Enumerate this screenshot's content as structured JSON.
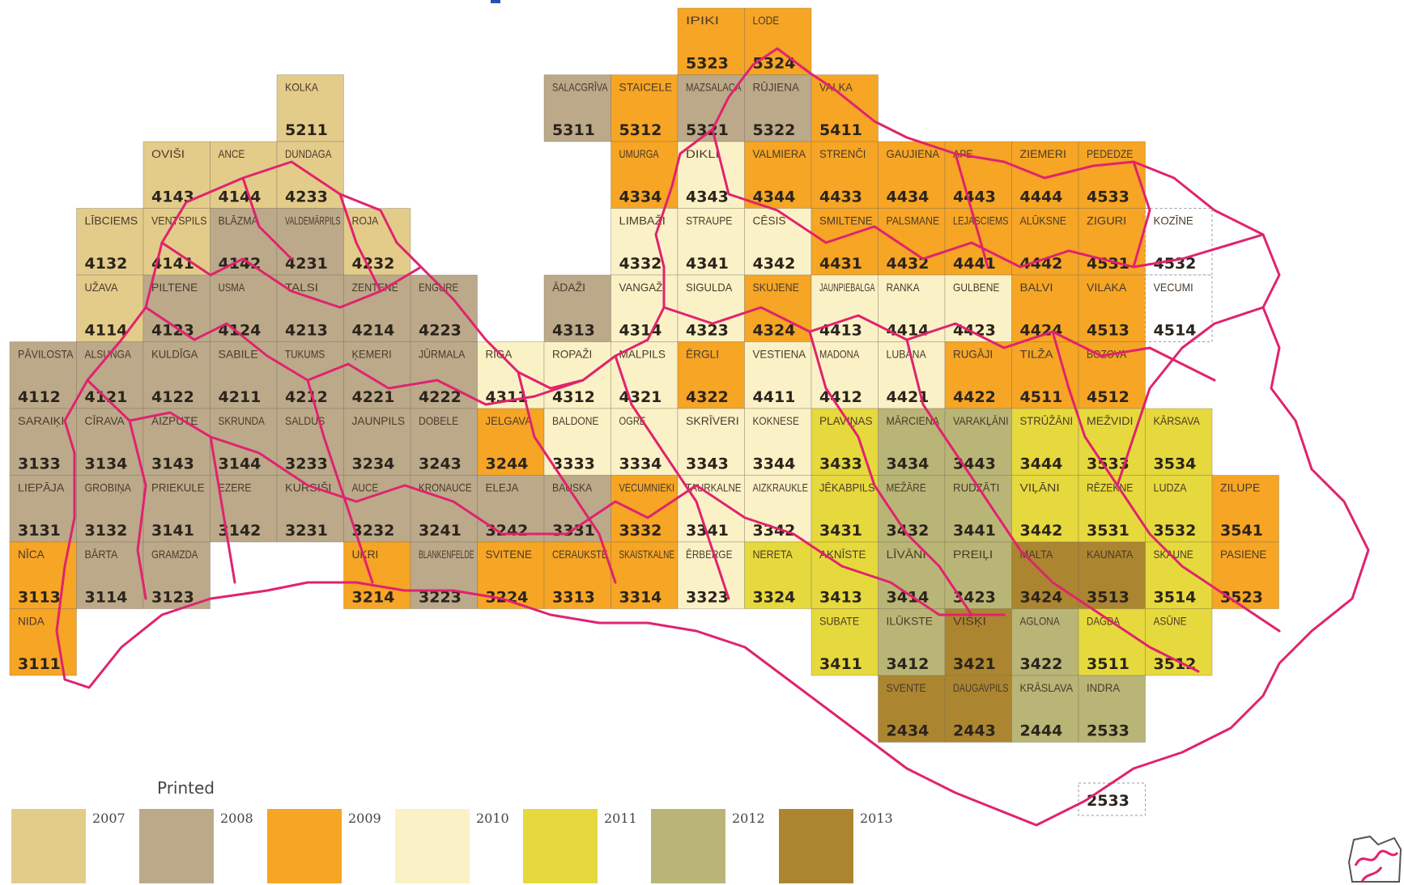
{
  "legend": {
    "title": "Printed",
    "items": [
      {
        "year": "2007",
        "color": "#e3cb8a"
      },
      {
        "year": "2008",
        "color": "#bba98a"
      },
      {
        "year": "2009",
        "color": "#f6a525"
      },
      {
        "year": "2010",
        "color": "#fbf1c6"
      },
      {
        "year": "2011",
        "color": "#e6d93d"
      },
      {
        "year": "2012",
        "color": "#b9b576"
      },
      {
        "year": "2013",
        "color": "#ab8530"
      }
    ]
  },
  "sheets": [
    {
      "c": 10,
      "r": 0,
      "name": "IPIKI",
      "num": "5323",
      "year": "2009"
    },
    {
      "c": 11,
      "r": 0,
      "name": "LODE",
      "num": "5324",
      "year": "2009"
    },
    {
      "c": 4,
      "r": 1,
      "name": "KOLKA",
      "num": "5211",
      "year": "2007"
    },
    {
      "c": 8,
      "r": 1,
      "name": "SALACGRĪVA",
      "num": "5311",
      "year": "2008"
    },
    {
      "c": 9,
      "r": 1,
      "name": "STAICELE",
      "num": "5312",
      "year": "2009"
    },
    {
      "c": 10,
      "r": 1,
      "name": "MAZSALACA",
      "num": "5321",
      "year": "2008"
    },
    {
      "c": 11,
      "r": 1,
      "name": "RŪJIENA",
      "num": "5322",
      "year": "2008"
    },
    {
      "c": 12,
      "r": 1,
      "name": "VALKA",
      "num": "5411",
      "year": "2009"
    },
    {
      "c": 2,
      "r": 2,
      "name": "OVIŠI",
      "num": "4143",
      "year": "2007"
    },
    {
      "c": 3,
      "r": 2,
      "name": "ANCE",
      "num": "4144",
      "year": "2007"
    },
    {
      "c": 4,
      "r": 2,
      "name": "DUNDAGA",
      "num": "4233",
      "year": "2007"
    },
    {
      "c": 9,
      "r": 2,
      "name": "UMURGA",
      "num": "4334",
      "year": "2009"
    },
    {
      "c": 10,
      "r": 2,
      "name": "DIKLI",
      "num": "4343",
      "year": "2010"
    },
    {
      "c": 11,
      "r": 2,
      "name": "VALMIERA",
      "num": "4344",
      "year": "2009"
    },
    {
      "c": 12,
      "r": 2,
      "name": "STRENČI",
      "num": "4433",
      "year": "2009"
    },
    {
      "c": 13,
      "r": 2,
      "name": "GAUJIENA",
      "num": "4434",
      "year": "2009"
    },
    {
      "c": 14,
      "r": 2,
      "name": "APE",
      "num": "4443",
      "year": "2009"
    },
    {
      "c": 15,
      "r": 2,
      "name": "ZIEMERI",
      "num": "4444",
      "year": "2009"
    },
    {
      "c": 16,
      "r": 2,
      "name": "PEDEDZE",
      "num": "4533",
      "year": "2009"
    },
    {
      "c": 1,
      "r": 3,
      "name": "LĪBCIEMS",
      "num": "4132",
      "year": "2007"
    },
    {
      "c": 2,
      "r": 3,
      "name": "VENTSPILS",
      "num": "4141",
      "year": "2007"
    },
    {
      "c": 3,
      "r": 3,
      "name": "BLĀZMA",
      "num": "4142",
      "year": "2008"
    },
    {
      "c": 4,
      "r": 3,
      "name": "VALDEMĀRPILS",
      "num": "4231",
      "year": "2008"
    },
    {
      "c": 5,
      "r": 3,
      "name": "ROJA",
      "num": "4232",
      "year": "2007"
    },
    {
      "c": 9,
      "r": 3,
      "name": "LIMBAŽI",
      "num": "4332",
      "year": "2010"
    },
    {
      "c": 10,
      "r": 3,
      "name": "STRAUPE",
      "num": "4341",
      "year": "2010"
    },
    {
      "c": 11,
      "r": 3,
      "name": "CĒSIS",
      "num": "4342",
      "year": "2010"
    },
    {
      "c": 12,
      "r": 3,
      "name": "SMILTENE",
      "num": "4431",
      "year": "2009"
    },
    {
      "c": 13,
      "r": 3,
      "name": "PALSMANE",
      "num": "4432",
      "year": "2009"
    },
    {
      "c": 14,
      "r": 3,
      "name": "LEJASCIEMS",
      "num": "4441",
      "year": "2009"
    },
    {
      "c": 15,
      "r": 3,
      "name": "ALŪKSNE",
      "num": "4442",
      "year": "2009"
    },
    {
      "c": 16,
      "r": 3,
      "name": "ZIGURI",
      "num": "4531",
      "year": "2009"
    },
    {
      "c": 17,
      "r": 3,
      "name": "KOZĪNE",
      "num": "4532",
      "year": "none"
    },
    {
      "c": 1,
      "r": 4,
      "name": "UŽAVA",
      "num": "4114",
      "year": "2007"
    },
    {
      "c": 2,
      "r": 4,
      "name": "PILTENE",
      "num": "4123",
      "year": "2008"
    },
    {
      "c": 3,
      "r": 4,
      "name": "USMA",
      "num": "4124",
      "year": "2008"
    },
    {
      "c": 4,
      "r": 4,
      "name": "TALSI",
      "num": "4213",
      "year": "2008"
    },
    {
      "c": 5,
      "r": 4,
      "name": "ZENTENE",
      "num": "4214",
      "year": "2008"
    },
    {
      "c": 6,
      "r": 4,
      "name": "ENGURE",
      "num": "4223",
      "year": "2008"
    },
    {
      "c": 8,
      "r": 4,
      "name": "ĀDAŽI",
      "num": "4313",
      "year": "2008"
    },
    {
      "c": 9,
      "r": 4,
      "name": "VANGAŽI",
      "num": "4314",
      "year": "2010"
    },
    {
      "c": 10,
      "r": 4,
      "name": "SIGULDA",
      "num": "4323",
      "year": "2010"
    },
    {
      "c": 11,
      "r": 4,
      "name": "SKUJENE",
      "num": "4324",
      "year": "2009"
    },
    {
      "c": 12,
      "r": 4,
      "name": "JAUNPIEBALGA",
      "num": "4413",
      "year": "2010"
    },
    {
      "c": 13,
      "r": 4,
      "name": "RANKA",
      "num": "4414",
      "year": "2010"
    },
    {
      "c": 14,
      "r": 4,
      "name": "GULBENE",
      "num": "4423",
      "year": "2010"
    },
    {
      "c": 15,
      "r": 4,
      "name": "BALVI",
      "num": "4424",
      "year": "2009"
    },
    {
      "c": 16,
      "r": 4,
      "name": "VILAKA",
      "num": "4513",
      "year": "2009"
    },
    {
      "c": 17,
      "r": 4,
      "name": "VECUMI",
      "num": "4514",
      "year": "none"
    },
    {
      "c": 0,
      "r": 5,
      "name": "PĀVILOSTA",
      "num": "4112",
      "year": "2008"
    },
    {
      "c": 1,
      "r": 5,
      "name": "ALSUNGA",
      "num": "4121",
      "year": "2008"
    },
    {
      "c": 2,
      "r": 5,
      "name": "KULDĪGA",
      "num": "4122",
      "year": "2008"
    },
    {
      "c": 3,
      "r": 5,
      "name": "SABILE",
      "num": "4211",
      "year": "2008"
    },
    {
      "c": 4,
      "r": 5,
      "name": "TUKUMS",
      "num": "4212",
      "year": "2008"
    },
    {
      "c": 5,
      "r": 5,
      "name": "ĶEMERI",
      "num": "4221",
      "year": "2008"
    },
    {
      "c": 6,
      "r": 5,
      "name": "JŪRMALA",
      "num": "4222",
      "year": "2008"
    },
    {
      "c": 7,
      "r": 5,
      "name": "RĪGA",
      "num": "4311",
      "year": "2010"
    },
    {
      "c": 8,
      "r": 5,
      "name": "ROPAŽI",
      "num": "4312",
      "year": "2010"
    },
    {
      "c": 9,
      "r": 5,
      "name": "MALPILS",
      "num": "4321",
      "year": "2010"
    },
    {
      "c": 10,
      "r": 5,
      "name": "ĒRGLI",
      "num": "4322",
      "year": "2009"
    },
    {
      "c": 11,
      "r": 5,
      "name": "VESTIENA",
      "num": "4411",
      "year": "2010"
    },
    {
      "c": 12,
      "r": 5,
      "name": "MADONA",
      "num": "4412",
      "year": "2010"
    },
    {
      "c": 13,
      "r": 5,
      "name": "LUBĀNA",
      "num": "4421",
      "year": "2010"
    },
    {
      "c": 14,
      "r": 5,
      "name": "RUGĀJI",
      "num": "4422",
      "year": "2009"
    },
    {
      "c": 15,
      "r": 5,
      "name": "TILŽA",
      "num": "4511",
      "year": "2009"
    },
    {
      "c": 16,
      "r": 5,
      "name": "BOZOVA",
      "num": "4512",
      "year": "2009"
    },
    {
      "c": 0,
      "r": 6,
      "name": "SARAIĶI",
      "num": "3133",
      "year": "2008"
    },
    {
      "c": 1,
      "r": 6,
      "name": "CĪRAVA",
      "num": "3134",
      "year": "2008"
    },
    {
      "c": 2,
      "r": 6,
      "name": "AIZPUTE",
      "num": "3143",
      "year": "2008"
    },
    {
      "c": 3,
      "r": 6,
      "name": "SKRUNDA",
      "num": "3144",
      "year": "2008"
    },
    {
      "c": 4,
      "r": 6,
      "name": "SALDUS",
      "num": "3233",
      "year": "2008"
    },
    {
      "c": 5,
      "r": 6,
      "name": "JAUNPILS",
      "num": "3234",
      "year": "2008"
    },
    {
      "c": 6,
      "r": 6,
      "name": "DOBELE",
      "num": "3243",
      "year": "2008"
    },
    {
      "c": 7,
      "r": 6,
      "name": "JELGAVA",
      "num": "3244",
      "year": "2009"
    },
    {
      "c": 8,
      "r": 6,
      "name": "BALDONE",
      "num": "3333",
      "year": "2010"
    },
    {
      "c": 9,
      "r": 6,
      "name": "OGRE",
      "num": "3334",
      "year": "2010"
    },
    {
      "c": 10,
      "r": 6,
      "name": "SKRĪVERI",
      "num": "3343",
      "year": "2010"
    },
    {
      "c": 11,
      "r": 6,
      "name": "KOKNESE",
      "num": "3344",
      "year": "2010"
    },
    {
      "c": 12,
      "r": 6,
      "name": "PLAVIŅAS",
      "num": "3433",
      "year": "2011"
    },
    {
      "c": 13,
      "r": 6,
      "name": "MĀRCIENA",
      "num": "3434",
      "year": "2012"
    },
    {
      "c": 14,
      "r": 6,
      "name": "VARAKĻĀNI",
      "num": "3443",
      "year": "2012"
    },
    {
      "c": 15,
      "r": 6,
      "name": "STRŪŽĀNI",
      "num": "3444",
      "year": "2011"
    },
    {
      "c": 16,
      "r": 6,
      "name": "MEŽVIDI",
      "num": "3533",
      "year": "2011"
    },
    {
      "c": 17,
      "r": 6,
      "name": "KĀRSAVA",
      "num": "3534",
      "year": "2011"
    },
    {
      "c": 0,
      "r": 7,
      "name": "LIEPĀJA",
      "num": "3131",
      "year": "2008"
    },
    {
      "c": 1,
      "r": 7,
      "name": "GROBIŅA",
      "num": "3132",
      "year": "2008"
    },
    {
      "c": 2,
      "r": 7,
      "name": "PRIEKULE",
      "num": "3141",
      "year": "2008"
    },
    {
      "c": 3,
      "r": 7,
      "name": "EZERE",
      "num": "3142",
      "year": "2008"
    },
    {
      "c": 4,
      "r": 7,
      "name": "KURSIŠI",
      "num": "3231",
      "year": "2008"
    },
    {
      "c": 5,
      "r": 7,
      "name": "AUCE",
      "num": "3232",
      "year": "2008"
    },
    {
      "c": 6,
      "r": 7,
      "name": "KRONAUCE",
      "num": "3241",
      "year": "2008"
    },
    {
      "c": 7,
      "r": 7,
      "name": "ELEJA",
      "num": "3242",
      "year": "2008"
    },
    {
      "c": 8,
      "r": 7,
      "name": "BAUSKA",
      "num": "3331",
      "year": "2008"
    },
    {
      "c": 9,
      "r": 7,
      "name": "VECUMNIEKI",
      "num": "3332",
      "year": "2009"
    },
    {
      "c": 10,
      "r": 7,
      "name": "TAURKALNE",
      "num": "3341",
      "year": "2010"
    },
    {
      "c": 11,
      "r": 7,
      "name": "AIZKRAUKLE",
      "num": "3342",
      "year": "2010"
    },
    {
      "c": 12,
      "r": 7,
      "name": "JĒKABPILS",
      "num": "3431",
      "year": "2011"
    },
    {
      "c": 13,
      "r": 7,
      "name": "MEŽĀRE",
      "num": "3432",
      "year": "2012"
    },
    {
      "c": 14,
      "r": 7,
      "name": "RUDZĀTI",
      "num": "3441",
      "year": "2012"
    },
    {
      "c": 15,
      "r": 7,
      "name": "VIĻĀNI",
      "num": "3442",
      "year": "2011"
    },
    {
      "c": 16,
      "r": 7,
      "name": "RĒZEKNE",
      "num": "3531",
      "year": "2011"
    },
    {
      "c": 17,
      "r": 7,
      "name": "LUDZA",
      "num": "3532",
      "year": "2011"
    },
    {
      "c": 18,
      "r": 7,
      "name": "ZILUPE",
      "num": "3541",
      "year": "2009"
    },
    {
      "c": 0,
      "r": 8,
      "name": "NĪCA",
      "num": "3113",
      "year": "2009"
    },
    {
      "c": 1,
      "r": 8,
      "name": "BĀRTA",
      "num": "3114",
      "year": "2008"
    },
    {
      "c": 2,
      "r": 8,
      "name": "GRAMZDA",
      "num": "3123",
      "year": "2008"
    },
    {
      "c": 5,
      "r": 8,
      "name": "UKRI",
      "num": "3214",
      "year": "2009"
    },
    {
      "c": 6,
      "r": 8,
      "name": "BLANKENFELDE",
      "num": "3223",
      "year": "2008"
    },
    {
      "c": 7,
      "r": 8,
      "name": "SVITENE",
      "num": "3224",
      "year": "2009"
    },
    {
      "c": 8,
      "r": 8,
      "name": "CERAUKSTE",
      "num": "3313",
      "year": "2009"
    },
    {
      "c": 9,
      "r": 8,
      "name": "SKAISTKALNE",
      "num": "3314",
      "year": "2009"
    },
    {
      "c": 10,
      "r": 8,
      "name": "ĒRBERGE",
      "num": "3323",
      "year": "2010"
    },
    {
      "c": 11,
      "r": 8,
      "name": "NERETA",
      "num": "3324",
      "year": "2011"
    },
    {
      "c": 12,
      "r": 8,
      "name": "AKNĪSTE",
      "num": "3413",
      "year": "2011"
    },
    {
      "c": 13,
      "r": 8,
      "name": "LĪVĀNI",
      "num": "3414",
      "year": "2012"
    },
    {
      "c": 14,
      "r": 8,
      "name": "PREIĻI",
      "num": "3423",
      "year": "2012"
    },
    {
      "c": 15,
      "r": 8,
      "name": "MALTA",
      "num": "3424",
      "year": "2013"
    },
    {
      "c": 16,
      "r": 8,
      "name": "KAUNATA",
      "num": "3513",
      "year": "2013"
    },
    {
      "c": 17,
      "r": 8,
      "name": "SKAUNE",
      "num": "3514",
      "year": "2011"
    },
    {
      "c": 18,
      "r": 8,
      "name": "PASIENE",
      "num": "3523",
      "year": "2009"
    },
    {
      "c": 0,
      "r": 9,
      "name": "NIDA",
      "num": "3111",
      "year": "2009"
    },
    {
      "c": 12,
      "r": 9,
      "name": "SUBATE",
      "num": "3411",
      "year": "2011"
    },
    {
      "c": 13,
      "r": 9,
      "name": "ILŪKSTE",
      "num": "3412",
      "year": "2012"
    },
    {
      "c": 14,
      "r": 9,
      "name": "VIŠĶI",
      "num": "3421",
      "year": "2013"
    },
    {
      "c": 15,
      "r": 9,
      "name": "AGLONA",
      "num": "3422",
      "year": "2012"
    },
    {
      "c": 16,
      "r": 9,
      "name": "DAGDA",
      "num": "3511",
      "year": "2011"
    },
    {
      "c": 17,
      "r": 9,
      "name": "ASŪNE",
      "num": "3512",
      "year": "2011"
    },
    {
      "c": 13,
      "r": 10,
      "name": "SVENTE",
      "num": "2434",
      "year": "2013"
    },
    {
      "c": 14,
      "r": 10,
      "name": "DAUGAVPILS",
      "num": "2443",
      "year": "2013"
    },
    {
      "c": 15,
      "r": 10,
      "name": "KRĀSLAVA",
      "num": "2444",
      "year": "2012"
    },
    {
      "c": 16,
      "r": 10,
      "name": "INDRA",
      "num": "2533",
      "year": "2012"
    },
    {
      "c": 16,
      "r": 11,
      "name": "",
      "num": "2533",
      "year": "none"
    }
  ]
}
